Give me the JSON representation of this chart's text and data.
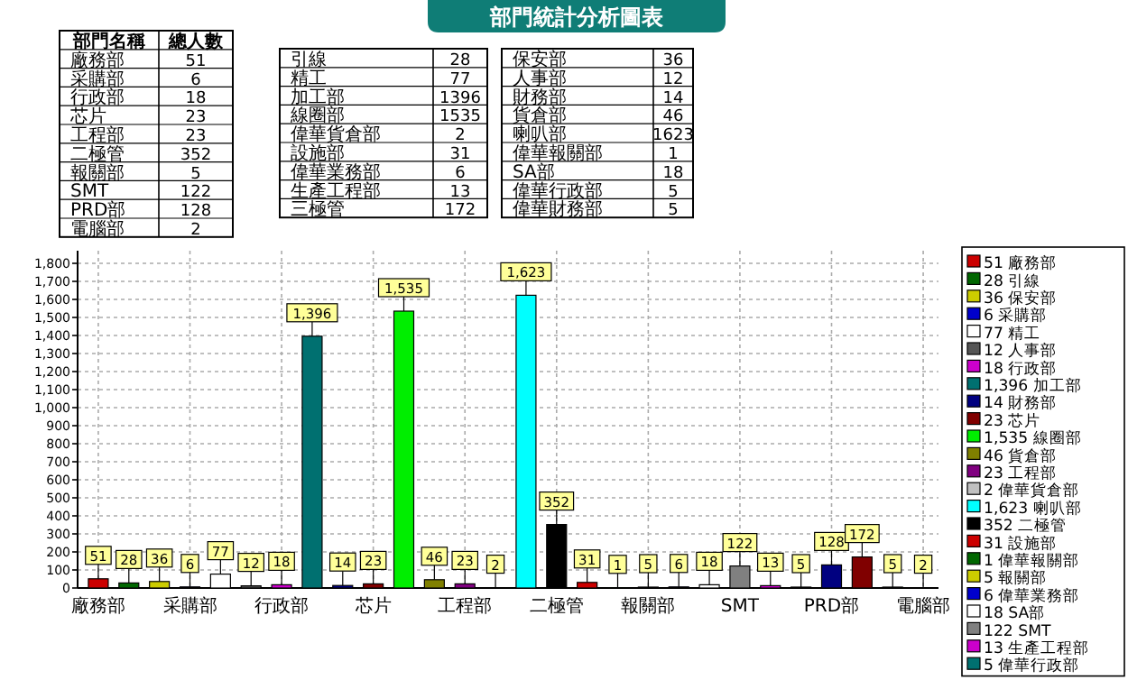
{
  "chart_data": [
    {
      "type": "other",
      "annotations": [
        "部門名稱",
        "總人數",
        "廠務部",
        "51",
        "采購部",
        "6",
        "行政部",
        "18",
        "芯片",
        "23",
        "工程部",
        "23",
        "二極管",
        "352",
        "報關部",
        "5",
        "SMT",
        "122",
        "PRD部",
        "128",
        "電腦部",
        "2"
      ]
    },
    {
      "type": "other",
      "annotations": [
        "引線",
        "28",
        "精工",
        "77",
        "加工部",
        "1396",
        "線圈部",
        "1535",
        "偉華貨倉部",
        "2",
        "設施部",
        "31",
        "偉華業務部",
        "6",
        "生產工程部",
        "13",
        "三極管",
        "172"
      ]
    },
    {
      "type": "other",
      "annotations": [
        "保安部",
        "36",
        "人事部",
        "12",
        "財務部",
        "14",
        "貨倉部",
        "46",
        "喇叭部",
        "1623",
        "偉華報關部",
        "1",
        "SA部",
        "18",
        "偉華行政部",
        "5",
        "偉華財務部",
        "5"
      ]
    },
    {
      "type": "bar",
      "title": "部門統計分析圖表",
      "categories": [
        "廠務部",
        null,
        null,
        "采購部",
        null,
        null,
        "行政部",
        null,
        null,
        "芯片",
        null,
        null,
        "工程部",
        null,
        null,
        "二極管",
        null,
        null,
        "報關部",
        null,
        null,
        "SMT",
        null,
        null,
        "PRD部",
        null,
        null,
        "電腦部"
      ],
      "ylim": [
        0,
        1870
      ],
      "yticks": [
        0,
        100,
        200,
        300,
        400,
        500,
        600,
        700,
        800,
        900,
        {
          "value": 1000,
          "label": "1,000"
        },
        {
          "value": 1100,
          "label": "1,100"
        },
        {
          "value": 1200,
          "label": "1,200"
        },
        {
          "value": 1300,
          "label": "1,300"
        },
        {
          "value": 1400,
          "label": "1,400"
        },
        {
          "value": 1500,
          "label": "1,500"
        },
        {
          "value": 1600,
          "label": "1,600"
        },
        {
          "value": 1700,
          "label": "1,700"
        },
        {
          "value": 1800,
          "label": "1,800"
        }
      ],
      "grid": true,
      "legend": "right",
      "series": [
        {
          "name": "51 廠務部",
          "color": "#cc0000",
          "values": [
            51,
            null,
            null,
            null,
            null,
            null,
            null,
            null,
            null,
            null,
            null,
            null,
            null,
            null,
            null,
            null,
            null,
            null,
            null,
            null,
            null,
            null,
            null,
            null,
            null,
            null,
            null,
            null
          ],
          "value_labels": [
            "51",
            null,
            null,
            null,
            null,
            null,
            null,
            null,
            null,
            null,
            null,
            null,
            null,
            null,
            null,
            null,
            null,
            null,
            null,
            null,
            null,
            null,
            null,
            null,
            null,
            null,
            null,
            null
          ]
        },
        {
          "name": "28 引線",
          "color": "#006600",
          "values": [
            null,
            28,
            null,
            null,
            null,
            null,
            null,
            null,
            null,
            null,
            null,
            null,
            null,
            null,
            null,
            null,
            null,
            null,
            null,
            null,
            null,
            null,
            null,
            null,
            null,
            null,
            null,
            null
          ],
          "value_labels": [
            null,
            "28",
            null,
            null,
            null,
            null,
            null,
            null,
            null,
            null,
            null,
            null,
            null,
            null,
            null,
            null,
            null,
            null,
            null,
            null,
            null,
            null,
            null,
            null,
            null,
            null,
            null,
            null
          ]
        },
        {
          "name": "36 保安部",
          "color": "#cccc00",
          "values": [
            null,
            null,
            36,
            null,
            null,
            null,
            null,
            null,
            null,
            null,
            null,
            null,
            null,
            null,
            null,
            null,
            null,
            null,
            null,
            null,
            null,
            null,
            null,
            null,
            null,
            null,
            null,
            null
          ],
          "value_labels": [
            null,
            null,
            "36",
            null,
            null,
            null,
            null,
            null,
            null,
            null,
            null,
            null,
            null,
            null,
            null,
            null,
            null,
            null,
            null,
            null,
            null,
            null,
            null,
            null,
            null,
            null,
            null,
            null
          ]
        },
        {
          "name": "6 采購部",
          "color": "#0000cc",
          "values": [
            null,
            null,
            null,
            6,
            null,
            null,
            null,
            null,
            null,
            null,
            null,
            null,
            null,
            null,
            null,
            null,
            null,
            null,
            null,
            null,
            null,
            null,
            null,
            null,
            null,
            null,
            null,
            null
          ],
          "value_labels": [
            null,
            null,
            null,
            "6",
            null,
            null,
            null,
            null,
            null,
            null,
            null,
            null,
            null,
            null,
            null,
            null,
            null,
            null,
            null,
            null,
            null,
            null,
            null,
            null,
            null,
            null,
            null,
            null
          ]
        },
        {
          "name": "77 精工",
          "color": "#ffffff",
          "values": [
            null,
            null,
            null,
            null,
            77,
            null,
            null,
            null,
            null,
            null,
            null,
            null,
            null,
            null,
            null,
            null,
            null,
            null,
            null,
            null,
            null,
            null,
            null,
            null,
            null,
            null,
            null,
            null
          ],
          "value_labels": [
            null,
            null,
            null,
            null,
            "77",
            null,
            null,
            null,
            null,
            null,
            null,
            null,
            null,
            null,
            null,
            null,
            null,
            null,
            null,
            null,
            null,
            null,
            null,
            null,
            null,
            null,
            null,
            null
          ]
        },
        {
          "name": "12 人事部",
          "color": "#555555",
          "values": [
            null,
            null,
            null,
            null,
            null,
            12,
            null,
            null,
            null,
            null,
            null,
            null,
            null,
            null,
            null,
            null,
            null,
            null,
            null,
            null,
            null,
            null,
            null,
            null,
            null,
            null,
            null,
            null
          ],
          "value_labels": [
            null,
            null,
            null,
            null,
            null,
            "12",
            null,
            null,
            null,
            null,
            null,
            null,
            null,
            null,
            null,
            null,
            null,
            null,
            null,
            null,
            null,
            null,
            null,
            null,
            null,
            null,
            null,
            null
          ]
        },
        {
          "name": "18 行政部",
          "color": "#cc00cc",
          "values": [
            null,
            null,
            null,
            null,
            null,
            null,
            18,
            null,
            null,
            null,
            null,
            null,
            null,
            null,
            null,
            null,
            null,
            null,
            null,
            null,
            null,
            null,
            null,
            null,
            null,
            null,
            null,
            null
          ],
          "value_labels": [
            null,
            null,
            null,
            null,
            null,
            null,
            "18",
            null,
            null,
            null,
            null,
            null,
            null,
            null,
            null,
            null,
            null,
            null,
            null,
            null,
            null,
            null,
            null,
            null,
            null,
            null,
            null,
            null
          ]
        },
        {
          "name": "1,396 加工部",
          "color": "#007070",
          "values": [
            null,
            null,
            null,
            null,
            null,
            null,
            null,
            1396,
            null,
            null,
            null,
            null,
            null,
            null,
            null,
            null,
            null,
            null,
            null,
            null,
            null,
            null,
            null,
            null,
            null,
            null,
            null,
            null
          ],
          "value_labels": [
            null,
            null,
            null,
            null,
            null,
            null,
            null,
            "1,396",
            null,
            null,
            null,
            null,
            null,
            null,
            null,
            null,
            null,
            null,
            null,
            null,
            null,
            null,
            null,
            null,
            null,
            null,
            null,
            null
          ]
        },
        {
          "name": "14 財務部",
          "color": "#000080",
          "values": [
            null,
            null,
            null,
            null,
            null,
            null,
            null,
            null,
            14,
            null,
            null,
            null,
            null,
            null,
            null,
            null,
            null,
            null,
            null,
            null,
            null,
            null,
            null,
            null,
            null,
            null,
            null,
            null
          ],
          "value_labels": [
            null,
            null,
            null,
            null,
            null,
            null,
            null,
            null,
            "14",
            null,
            null,
            null,
            null,
            null,
            null,
            null,
            null,
            null,
            null,
            null,
            null,
            null,
            null,
            null,
            null,
            null,
            null,
            null
          ]
        },
        {
          "name": "23 芯片",
          "color": "#800000",
          "values": [
            null,
            null,
            null,
            null,
            null,
            null,
            null,
            null,
            null,
            23,
            null,
            null,
            null,
            null,
            null,
            null,
            null,
            null,
            null,
            null,
            null,
            null,
            null,
            null,
            null,
            null,
            null,
            null
          ],
          "value_labels": [
            null,
            null,
            null,
            null,
            null,
            null,
            null,
            null,
            null,
            "23",
            null,
            null,
            null,
            null,
            null,
            null,
            null,
            null,
            null,
            null,
            null,
            null,
            null,
            null,
            null,
            null,
            null,
            null
          ]
        },
        {
          "name": "1,535 線圈部",
          "color": "#00ee00",
          "values": [
            null,
            null,
            null,
            null,
            null,
            null,
            null,
            null,
            null,
            null,
            1535,
            null,
            null,
            null,
            null,
            null,
            null,
            null,
            null,
            null,
            null,
            null,
            null,
            null,
            null,
            null,
            null,
            null
          ],
          "value_labels": [
            null,
            null,
            null,
            null,
            null,
            null,
            null,
            null,
            null,
            null,
            "1,535",
            null,
            null,
            null,
            null,
            null,
            null,
            null,
            null,
            null,
            null,
            null,
            null,
            null,
            null,
            null,
            null,
            null
          ]
        },
        {
          "name": "46 貨倉部",
          "color": "#808000",
          "values": [
            null,
            null,
            null,
            null,
            null,
            null,
            null,
            null,
            null,
            null,
            null,
            46,
            null,
            null,
            null,
            null,
            null,
            null,
            null,
            null,
            null,
            null,
            null,
            null,
            null,
            null,
            null,
            null
          ],
          "value_labels": [
            null,
            null,
            null,
            null,
            null,
            null,
            null,
            null,
            null,
            null,
            null,
            "46",
            null,
            null,
            null,
            null,
            null,
            null,
            null,
            null,
            null,
            null,
            null,
            null,
            null,
            null,
            null,
            null
          ]
        },
        {
          "name": "23 工程部",
          "color": "#800080",
          "values": [
            null,
            null,
            null,
            null,
            null,
            null,
            null,
            null,
            null,
            null,
            null,
            null,
            23,
            null,
            null,
            null,
            null,
            null,
            null,
            null,
            null,
            null,
            null,
            null,
            null,
            null,
            null,
            null
          ],
          "value_labels": [
            null,
            null,
            null,
            null,
            null,
            null,
            null,
            null,
            null,
            null,
            null,
            null,
            "23",
            null,
            null,
            null,
            null,
            null,
            null,
            null,
            null,
            null,
            null,
            null,
            null,
            null,
            null,
            null
          ]
        },
        {
          "name": "2 偉華貨倉部",
          "color": "#c0c0c0",
          "values": [
            null,
            null,
            null,
            null,
            null,
            null,
            null,
            null,
            null,
            null,
            null,
            null,
            null,
            2,
            null,
            null,
            null,
            null,
            null,
            null,
            null,
            null,
            null,
            null,
            null,
            null,
            null,
            null
          ],
          "value_labels": [
            null,
            null,
            null,
            null,
            null,
            null,
            null,
            null,
            null,
            null,
            null,
            null,
            null,
            "2",
            null,
            null,
            null,
            null,
            null,
            null,
            null,
            null,
            null,
            null,
            null,
            null,
            null,
            null
          ]
        },
        {
          "name": "1,623 喇叭部",
          "color": "#00ffff",
          "values": [
            null,
            null,
            null,
            null,
            null,
            null,
            null,
            null,
            null,
            null,
            null,
            null,
            null,
            null,
            1623,
            null,
            null,
            null,
            null,
            null,
            null,
            null,
            null,
            null,
            null,
            null,
            null,
            null
          ],
          "value_labels": [
            null,
            null,
            null,
            null,
            null,
            null,
            null,
            null,
            null,
            null,
            null,
            null,
            null,
            null,
            "1,623",
            null,
            null,
            null,
            null,
            null,
            null,
            null,
            null,
            null,
            null,
            null,
            null,
            null
          ]
        },
        {
          "name": "352 二極管",
          "color": "#000000",
          "values": [
            null,
            null,
            null,
            null,
            null,
            null,
            null,
            null,
            null,
            null,
            null,
            null,
            null,
            null,
            null,
            352,
            null,
            null,
            null,
            null,
            null,
            null,
            null,
            null,
            null,
            null,
            null,
            null
          ],
          "value_labels": [
            null,
            null,
            null,
            null,
            null,
            null,
            null,
            null,
            null,
            null,
            null,
            null,
            null,
            null,
            null,
            "352",
            null,
            null,
            null,
            null,
            null,
            null,
            null,
            null,
            null,
            null,
            null,
            null
          ]
        },
        {
          "name": "31 設施部",
          "color": "#cc0000",
          "values": [
            null,
            null,
            null,
            null,
            null,
            null,
            null,
            null,
            null,
            null,
            null,
            null,
            null,
            null,
            null,
            null,
            31,
            null,
            null,
            null,
            null,
            null,
            null,
            null,
            null,
            null,
            null,
            null
          ],
          "value_labels": [
            null,
            null,
            null,
            null,
            null,
            null,
            null,
            null,
            null,
            null,
            null,
            null,
            null,
            null,
            null,
            null,
            "31",
            null,
            null,
            null,
            null,
            null,
            null,
            null,
            null,
            null,
            null,
            null
          ]
        },
        {
          "name": "1 偉華報關部",
          "color": "#006600",
          "values": [
            null,
            null,
            null,
            null,
            null,
            null,
            null,
            null,
            null,
            null,
            null,
            null,
            null,
            null,
            null,
            null,
            null,
            1,
            null,
            null,
            null,
            null,
            null,
            null,
            null,
            null,
            null,
            null
          ],
          "value_labels": [
            null,
            null,
            null,
            null,
            null,
            null,
            null,
            null,
            null,
            null,
            null,
            null,
            null,
            null,
            null,
            null,
            null,
            "1",
            null,
            null,
            null,
            null,
            null,
            null,
            null,
            null,
            null,
            null
          ]
        },
        {
          "name": "5 報關部",
          "color": "#cccc00",
          "values": [
            null,
            null,
            null,
            null,
            null,
            null,
            null,
            null,
            null,
            null,
            null,
            null,
            null,
            null,
            null,
            null,
            null,
            null,
            5,
            null,
            null,
            null,
            null,
            null,
            null,
            null,
            null,
            null
          ],
          "value_labels": [
            null,
            null,
            null,
            null,
            null,
            null,
            null,
            null,
            null,
            null,
            null,
            null,
            null,
            null,
            null,
            null,
            null,
            null,
            "5",
            null,
            null,
            null,
            null,
            null,
            null,
            null,
            null,
            null
          ]
        },
        {
          "name": "6 偉華業務部",
          "color": "#0000cc",
          "values": [
            null,
            null,
            null,
            null,
            null,
            null,
            null,
            null,
            null,
            null,
            null,
            null,
            null,
            null,
            null,
            null,
            null,
            null,
            null,
            6,
            null,
            null,
            null,
            null,
            null,
            null,
            null,
            null
          ],
          "value_labels": [
            null,
            null,
            null,
            null,
            null,
            null,
            null,
            null,
            null,
            null,
            null,
            null,
            null,
            null,
            null,
            null,
            null,
            null,
            null,
            "6",
            null,
            null,
            null,
            null,
            null,
            null,
            null,
            null
          ]
        },
        {
          "name": "18 SA部",
          "color": "#ffffff",
          "values": [
            null,
            null,
            null,
            null,
            null,
            null,
            null,
            null,
            null,
            null,
            null,
            null,
            null,
            null,
            null,
            null,
            null,
            null,
            null,
            null,
            18,
            null,
            null,
            null,
            null,
            null,
            null,
            null
          ],
          "value_labels": [
            null,
            null,
            null,
            null,
            null,
            null,
            null,
            null,
            null,
            null,
            null,
            null,
            null,
            null,
            null,
            null,
            null,
            null,
            null,
            null,
            "18",
            null,
            null,
            null,
            null,
            null,
            null,
            null
          ]
        },
        {
          "name": "122 SMT",
          "color": "#808080",
          "values": [
            null,
            null,
            null,
            null,
            null,
            null,
            null,
            null,
            null,
            null,
            null,
            null,
            null,
            null,
            null,
            null,
            null,
            null,
            null,
            null,
            null,
            122,
            null,
            null,
            null,
            null,
            null,
            null
          ],
          "value_labels": [
            null,
            null,
            null,
            null,
            null,
            null,
            null,
            null,
            null,
            null,
            null,
            null,
            null,
            null,
            null,
            null,
            null,
            null,
            null,
            null,
            null,
            "122",
            null,
            null,
            null,
            null,
            null,
            null
          ]
        },
        {
          "name": "13 生產工程部",
          "color": "#cc00cc",
          "values": [
            null,
            null,
            null,
            null,
            null,
            null,
            null,
            null,
            null,
            null,
            null,
            null,
            null,
            null,
            null,
            null,
            null,
            null,
            null,
            null,
            null,
            null,
            13,
            null,
            null,
            null,
            null,
            null
          ],
          "value_labels": [
            null,
            null,
            null,
            null,
            null,
            null,
            null,
            null,
            null,
            null,
            null,
            null,
            null,
            null,
            null,
            null,
            null,
            null,
            null,
            null,
            null,
            null,
            "13",
            null,
            null,
            null,
            null,
            null
          ]
        },
        {
          "name": "5 偉華行政部",
          "color": "#007070",
          "values": [
            null,
            null,
            null,
            null,
            null,
            null,
            null,
            null,
            null,
            null,
            null,
            null,
            null,
            null,
            null,
            null,
            null,
            null,
            null,
            null,
            null,
            null,
            null,
            5,
            null,
            null,
            null,
            null
          ],
          "value_labels": [
            null,
            null,
            null,
            null,
            null,
            null,
            null,
            null,
            null,
            null,
            null,
            null,
            null,
            null,
            null,
            null,
            null,
            null,
            null,
            null,
            null,
            null,
            null,
            "5",
            null,
            null,
            null,
            null
          ]
        },
        {
          "color": "#000080",
          "values": [
            null,
            null,
            null,
            null,
            null,
            null,
            null,
            null,
            null,
            null,
            null,
            null,
            null,
            null,
            null,
            null,
            null,
            null,
            null,
            null,
            null,
            null,
            null,
            null,
            128,
            null,
            null,
            null
          ],
          "value_labels": [
            null,
            null,
            null,
            null,
            null,
            null,
            null,
            null,
            null,
            null,
            null,
            null,
            null,
            null,
            null,
            null,
            null,
            null,
            null,
            null,
            null,
            null,
            null,
            null,
            "128",
            null,
            null,
            null
          ]
        },
        {
          "color": "#800000",
          "values": [
            null,
            null,
            null,
            null,
            null,
            null,
            null,
            null,
            null,
            null,
            null,
            null,
            null,
            null,
            null,
            null,
            null,
            null,
            null,
            null,
            null,
            null,
            null,
            null,
            null,
            172,
            null,
            null
          ],
          "value_labels": [
            null,
            null,
            null,
            null,
            null,
            null,
            null,
            null,
            null,
            null,
            null,
            null,
            null,
            null,
            null,
            null,
            null,
            null,
            null,
            null,
            null,
            null,
            null,
            null,
            null,
            "172",
            null,
            null
          ]
        },
        {
          "color": "#00ee00",
          "values": [
            null,
            null,
            null,
            null,
            null,
            null,
            null,
            null,
            null,
            null,
            null,
            null,
            null,
            null,
            null,
            null,
            null,
            null,
            null,
            null,
            null,
            null,
            null,
            null,
            null,
            null,
            5,
            null
          ],
          "value_labels": [
            null,
            null,
            null,
            null,
            null,
            null,
            null,
            null,
            null,
            null,
            null,
            null,
            null,
            null,
            null,
            null,
            null,
            null,
            null,
            null,
            null,
            null,
            null,
            null,
            null,
            null,
            "5",
            null
          ]
        },
        {
          "color": "#808000",
          "values": [
            null,
            null,
            null,
            null,
            null,
            null,
            null,
            null,
            null,
            null,
            null,
            null,
            null,
            null,
            null,
            null,
            null,
            null,
            null,
            null,
            null,
            null,
            null,
            null,
            null,
            null,
            null,
            2
          ],
          "value_labels": [
            null,
            null,
            null,
            null,
            null,
            null,
            null,
            null,
            null,
            null,
            null,
            null,
            null,
            null,
            null,
            null,
            null,
            null,
            null,
            null,
            null,
            null,
            null,
            null,
            null,
            null,
            null,
            "2"
          ]
        }
      ]
    }
  ]
}
